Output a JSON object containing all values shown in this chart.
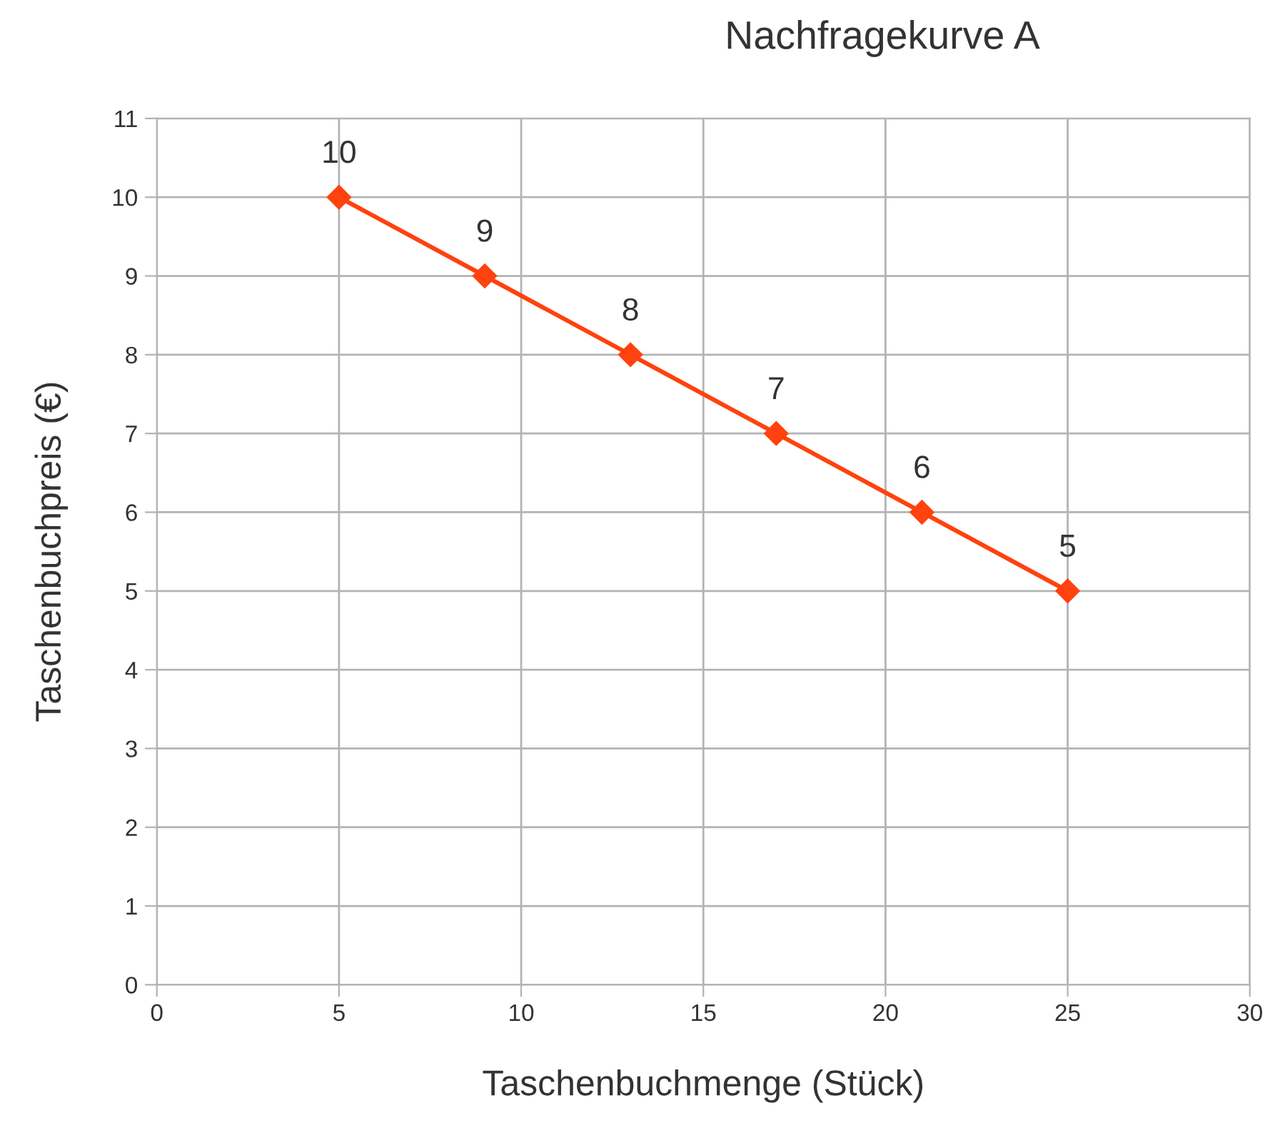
{
  "chart_data": {
    "type": "line",
    "title": "Nachfragekurve A",
    "xlabel": "Taschenbuchmenge (Stück)",
    "ylabel": "Taschenbuchpreis (€)",
    "x": [
      5,
      9,
      13,
      17,
      21,
      25
    ],
    "series": [
      {
        "color": "#ff420e",
        "values": [
          10,
          9,
          8,
          7,
          6,
          5
        ]
      }
    ],
    "xlim": [
      0,
      30
    ],
    "xticks": [
      0,
      5,
      10,
      15,
      20,
      25,
      30
    ],
    "ylim": [
      0,
      11
    ],
    "yticks": [
      0,
      1,
      2,
      3,
      4,
      5,
      6,
      7,
      8,
      9,
      10,
      11
    ],
    "grid": true,
    "marker": "diamond",
    "line_style": "solid",
    "data_labels": true
  }
}
